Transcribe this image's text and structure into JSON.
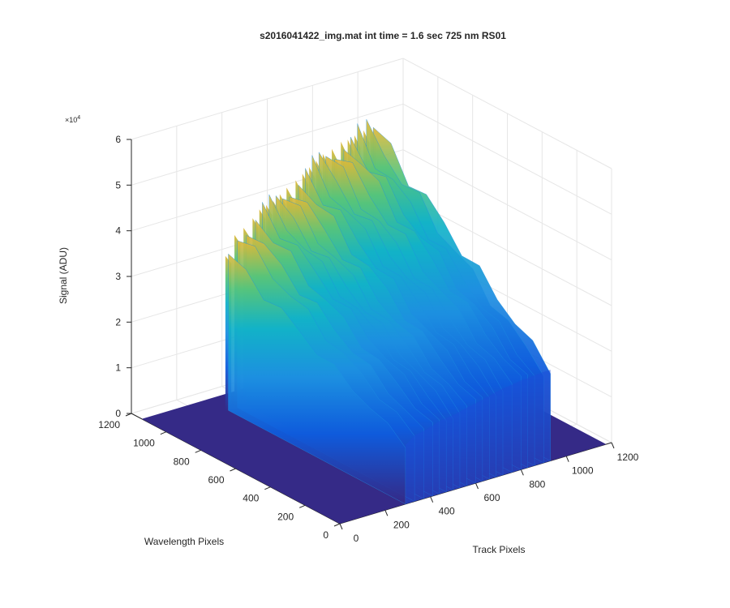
{
  "chart_data": {
    "type": "surface",
    "title": "s2016041422_img.mat int time = 1.6 sec  725 nm RS01",
    "xlabel": "Track Pixels",
    "ylabel": "Wavelength Pixels",
    "zlabel": "Signal (ADU)",
    "z_exponent_label": "×10",
    "z_exponent_power": "4",
    "xlim": [
      0,
      1200
    ],
    "ylim": [
      0,
      1200
    ],
    "zlim": [
      0,
      60000
    ],
    "x_ticks": [
      "0",
      "200",
      "400",
      "600",
      "800",
      "1000",
      "1200"
    ],
    "y_ticks": [
      "0",
      "200",
      "400",
      "600",
      "800",
      "1000",
      "1200"
    ],
    "z_ticks": [
      "0",
      "1",
      "2",
      "3",
      "4",
      "5",
      "6"
    ],
    "grid": true,
    "colormap": "parula",
    "colors": {
      "low": "#352a87",
      "mid": "#0f5cdd",
      "high": "#e1b837"
    },
    "baseline_signal": 0,
    "signal_band_wavelength_px": [
      0,
      1020
    ],
    "peaks": [
      {
        "track_px": 290,
        "signal": 34000
      },
      {
        "track_px": 330,
        "signal": 38000
      },
      {
        "track_px": 370,
        "signal": 39000
      },
      {
        "track_px": 410,
        "signal": 40500
      },
      {
        "track_px": 440,
        "signal": 42000
      },
      {
        "track_px": 470,
        "signal": 42500
      },
      {
        "track_px": 500,
        "signal": 43000
      },
      {
        "track_px": 530,
        "signal": 44000
      },
      {
        "track_px": 560,
        "signal": 45000
      },
      {
        "track_px": 600,
        "signal": 46000
      },
      {
        "track_px": 630,
        "signal": 47000
      },
      {
        "track_px": 660,
        "signal": 48000
      },
      {
        "track_px": 690,
        "signal": 49000
      },
      {
        "track_px": 720,
        "signal": 50000
      },
      {
        "track_px": 760,
        "signal": 50500
      },
      {
        "track_px": 800,
        "signal": 51500
      },
      {
        "track_px": 830,
        "signal": 51500
      },
      {
        "track_px": 860,
        "signal": 52000
      },
      {
        "track_px": 900,
        "signal": 52500
      },
      {
        "track_px": 930,
        "signal": 52500
      }
    ]
  }
}
